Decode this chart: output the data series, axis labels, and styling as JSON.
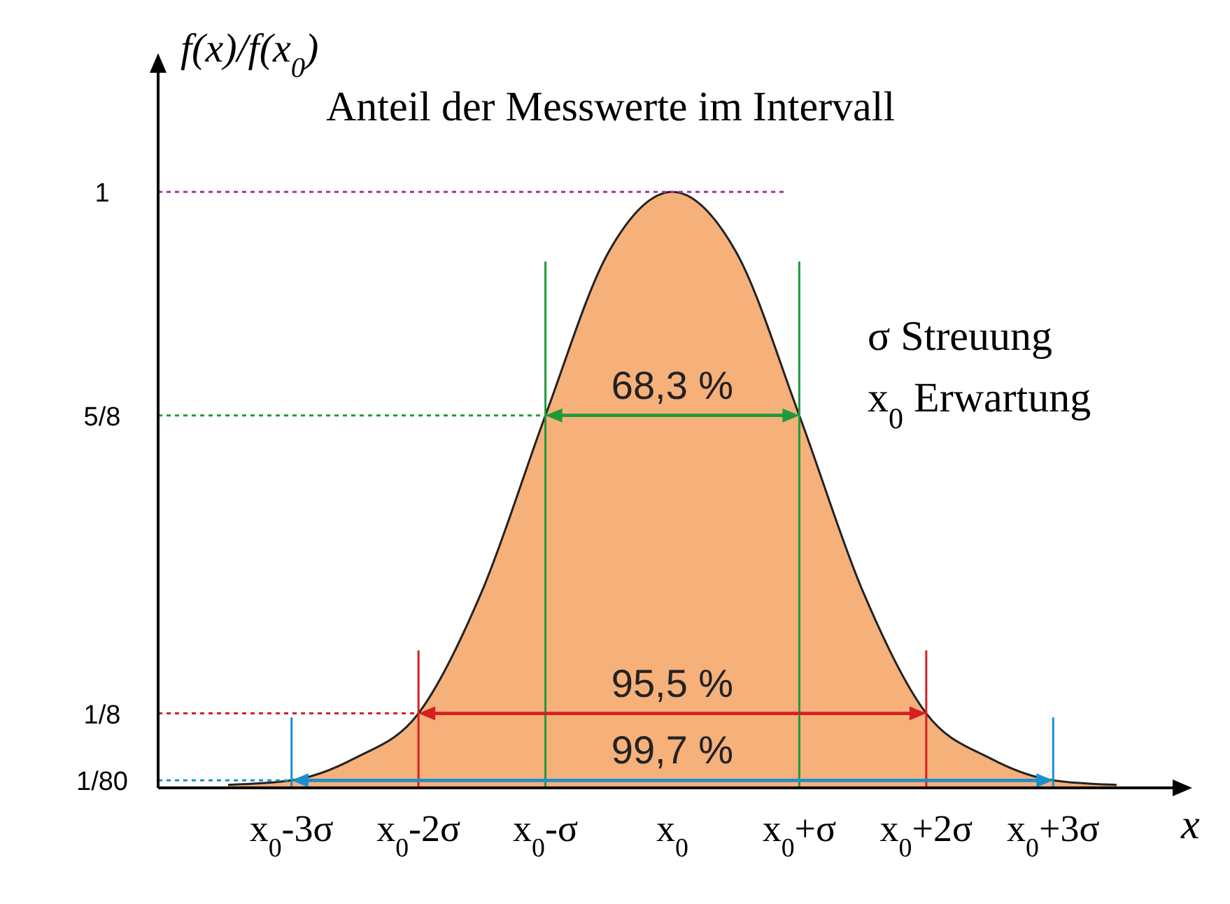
{
  "chart_data": {
    "type": "area",
    "title": "Anteil der Messwerte im Intervall",
    "xlabel": "x",
    "ylabel": "f(x)/f(x$_{0}$)",
    "categories": [
      null,
      "x$_{0}$-3σ",
      null,
      "x$_{0}$-2σ",
      null,
      "x$_{0}$-σ",
      null,
      "x$_{0}$",
      null,
      "x$_{0}$+σ",
      null,
      "x$_{0}$+2σ",
      null,
      "x$_{0}$+3σ",
      null
    ],
    "series": [
      {
        "color": "#f6b07a",
        "values": [
          0.005,
          0.0125,
          0.05,
          0.125,
          0.33,
          0.625,
          0.9,
          1,
          0.9,
          0.625,
          0.33,
          0.125,
          0.05,
          0.0125,
          0.005
        ]
      }
    ],
    "ylim": [
      0,
      1.2
    ],
    "yticks": [
      {
        "value": 0.0125,
        "label": "1/80"
      },
      {
        "value": 0.125,
        "label": "1/8"
      },
      {
        "value": 0.625,
        "label": "5/8"
      },
      {
        "value": 1,
        "label": "1"
      }
    ],
    "ref_lines": [
      {
        "axis": "y",
        "value": 1,
        "color": "#b0309a",
        "line_style": "dotted"
      },
      {
        "axis": "y",
        "value": 0.625,
        "color": "#1f9a3a",
        "line_style": "dotted"
      },
      {
        "axis": "y",
        "value": 0.125,
        "color": "#d42020",
        "line_style": "dotted"
      },
      {
        "axis": "y",
        "value": 0.0125,
        "color": "#1a8fd0",
        "line_style": "dotted"
      }
    ],
    "annotations": [
      "68,3 %",
      "95,5 %",
      "99,7 %",
      "σ Streuung",
      "x$_{0}$ Erwartung"
    ]
  }
}
